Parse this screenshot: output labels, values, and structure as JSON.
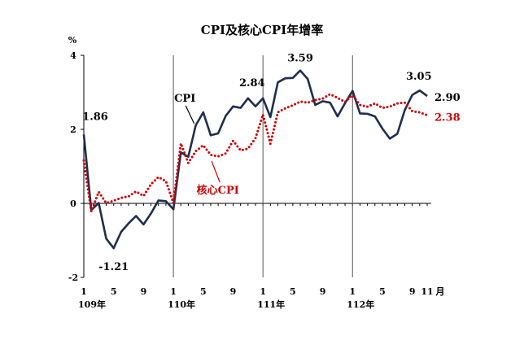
{
  "chart_data": {
    "type": "line",
    "title": "CPI及核心CPI年增率",
    "ylabel": "%",
    "ylim": [
      -2,
      4
    ],
    "yticks": [
      "4",
      "2",
      "0",
      "-2"
    ],
    "x_month_ticks": [
      {
        "index": 0,
        "label": "1"
      },
      {
        "index": 4,
        "label": "5"
      },
      {
        "index": 8,
        "label": "9"
      },
      {
        "index": 12,
        "label": "1"
      },
      {
        "index": 16,
        "label": "5"
      },
      {
        "index": 20,
        "label": "9"
      },
      {
        "index": 24,
        "label": "1"
      },
      {
        "index": 28,
        "label": "5"
      },
      {
        "index": 32,
        "label": "9"
      },
      {
        "index": 36,
        "label": "1"
      },
      {
        "index": 40,
        "label": "5"
      },
      {
        "index": 44,
        "label": "9"
      },
      {
        "index": 46,
        "label": "11"
      }
    ],
    "month_unit": "月",
    "year_labels": [
      {
        "index": 0,
        "label": "109年"
      },
      {
        "index": 12,
        "label": "110年"
      },
      {
        "index": 24,
        "label": "111年"
      },
      {
        "index": 36,
        "label": "112年"
      }
    ],
    "year_dividers": [
      12,
      24,
      36
    ],
    "series": [
      {
        "name": "CPI",
        "color": "#1f2d4e",
        "style": "solid",
        "values": [
          1.86,
          -0.18,
          0.01,
          -0.95,
          -1.21,
          -0.77,
          -0.54,
          -0.34,
          -0.57,
          -0.27,
          0.08,
          0.06,
          -0.16,
          1.38,
          1.26,
          2.11,
          2.46,
          1.84,
          1.89,
          2.36,
          2.62,
          2.58,
          2.84,
          2.62,
          2.84,
          2.33,
          3.27,
          3.38,
          3.39,
          3.59,
          3.36,
          2.66,
          2.76,
          2.72,
          2.35,
          2.71,
          3.04,
          2.43,
          2.42,
          2.35,
          2.02,
          1.75,
          1.88,
          2.52,
          2.93,
          3.05,
          2.9
        ]
      },
      {
        "name": "核心CPI",
        "color": "#cc0000",
        "style": "dotted",
        "values": [
          1.16,
          -0.22,
          0.31,
          0.01,
          0.07,
          0.15,
          0.19,
          0.32,
          0.2,
          0.52,
          0.71,
          0.6,
          0.01,
          1.62,
          1.09,
          1.41,
          1.57,
          1.31,
          1.27,
          1.35,
          1.69,
          1.43,
          1.48,
          1.76,
          2.4,
          1.61,
          2.46,
          2.57,
          2.65,
          2.75,
          2.72,
          2.79,
          2.83,
          2.95,
          2.85,
          2.74,
          2.92,
          2.66,
          2.61,
          2.7,
          2.58,
          2.61,
          2.7,
          2.72,
          2.49,
          2.46,
          2.38
        ]
      }
    ],
    "annotations": [
      {
        "text": "1.86",
        "series": 0,
        "index": 0
      },
      {
        "text": "-1.21",
        "series": 0,
        "index": 4
      },
      {
        "text": "2.84",
        "series": 0,
        "index": 22
      },
      {
        "text": "3.59",
        "series": 0,
        "index": 29
      },
      {
        "text": "3.05",
        "series": 0,
        "index": 45
      },
      {
        "text": "2.90",
        "series": 0,
        "index": 46
      },
      {
        "text": "2.38",
        "series": 1,
        "index": 46
      }
    ],
    "series_labels": [
      {
        "text": "CPI",
        "series": 0,
        "color": "#000000"
      },
      {
        "text": "核心CPI",
        "series": 1,
        "color": "#cc0000"
      }
    ]
  }
}
